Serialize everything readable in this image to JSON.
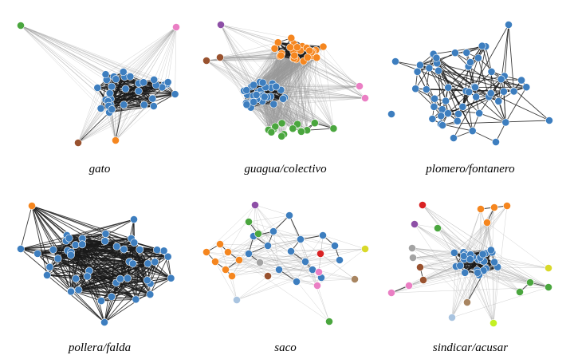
{
  "colors": {
    "blue": "#3d7ebf",
    "orange": "#f5861f",
    "green": "#4aa63e",
    "pink": "#ea7fc4",
    "purple": "#8d4fa6",
    "brown": "#99522f",
    "red": "#d92123",
    "gray": "#a3a3a3",
    "tan": "#a88561",
    "lightblue": "#a9c4e0",
    "yellow": "#d9d92a",
    "lime": "#c4f023"
  },
  "panels": [
    {
      "caption": "gato"
    },
    {
      "caption": "guagua/colectivo"
    },
    {
      "caption": "plomero/fontanero"
    },
    {
      "caption": "pollera/falda"
    },
    {
      "caption": "saco"
    },
    {
      "caption": "sindicar/acusar"
    }
  ]
}
